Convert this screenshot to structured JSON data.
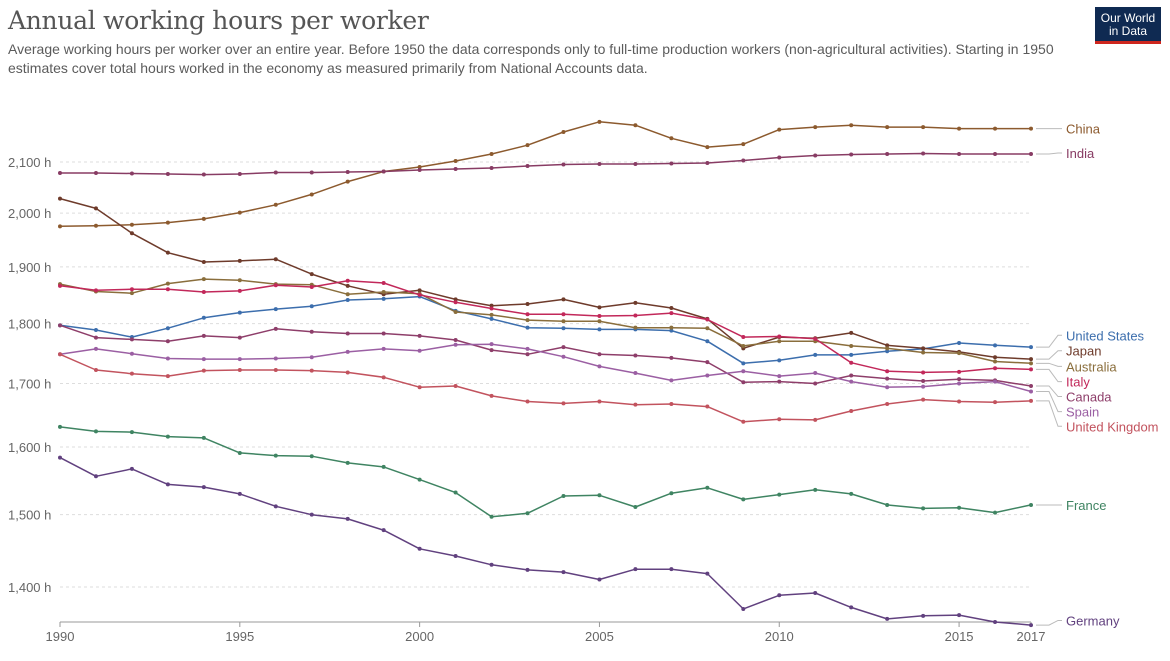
{
  "header": {
    "title": "Annual working hours per worker",
    "subtitle": "Average working hours per worker over an entire year. Before 1950 the data corresponds only to full-time production workers (non-agricultural activities). Starting in 1950 estimates cover total hours worked in the economy as measured primarily from National Accounts data.",
    "logo_line1": "Our World",
    "logo_line2": "in Data"
  },
  "chart_data": {
    "type": "line",
    "title": "Annual working hours per worker",
    "xlabel": "",
    "ylabel": "",
    "xlim": [
      1990,
      2017
    ],
    "ylim": [
      1350,
      2200
    ],
    "x_ticks": [
      1990,
      1995,
      2000,
      2005,
      2010,
      2015,
      2017
    ],
    "y_ticks": [
      {
        "value": 1400,
        "label": "1,400 h"
      },
      {
        "value": 1500,
        "label": "1,500 h"
      },
      {
        "value": 1600,
        "label": "1,600 h"
      },
      {
        "value": 1700,
        "label": "1,700 h"
      },
      {
        "value": 1800,
        "label": "1,800 h"
      },
      {
        "value": 1900,
        "label": "1,900 h"
      },
      {
        "value": 2000,
        "label": "2,000 h"
      },
      {
        "value": 2100,
        "label": "2,100 h"
      }
    ],
    "grid": true,
    "legend": "right-end labels",
    "x": [
      1990,
      1991,
      1992,
      1993,
      1994,
      1995,
      1996,
      1997,
      1998,
      1999,
      2000,
      2001,
      2002,
      2003,
      2004,
      2005,
      2006,
      2007,
      2008,
      2009,
      2010,
      2011,
      2012,
      2013,
      2014,
      2015,
      2016,
      2017
    ],
    "series": [
      {
        "name": "China",
        "color": "#8c5a2e",
        "label_value": 2168,
        "values": [
          1975,
          1976,
          1978,
          1982,
          1989,
          2001,
          2016,
          2036,
          2061,
          2081,
          2090,
          2102,
          2116,
          2134,
          2161,
          2182,
          2175,
          2148,
          2130,
          2136,
          2166,
          2171,
          2175,
          2171,
          2171,
          2168,
          2168,
          2168
        ]
      },
      {
        "name": "India",
        "color": "#883c64",
        "label_value": 2118,
        "values": [
          2078,
          2078,
          2077,
          2076,
          2075,
          2076,
          2079,
          2079,
          2080,
          2081,
          2084,
          2086,
          2088,
          2092,
          2095,
          2096,
          2096,
          2097,
          2098,
          2103,
          2109,
          2113,
          2115,
          2116,
          2117,
          2116,
          2116,
          2116
        ]
      },
      {
        "name": "United States",
        "color": "#3c6ead",
        "label_value": 1780,
        "values": [
          1797,
          1789,
          1777,
          1792,
          1810,
          1819,
          1825,
          1830,
          1841,
          1843,
          1847,
          1822,
          1808,
          1793,
          1792,
          1790,
          1790,
          1788,
          1770,
          1733,
          1738,
          1747,
          1747,
          1753,
          1757,
          1767,
          1763,
          1760
        ]
      },
      {
        "name": "Japan",
        "color": "#6e3b2b",
        "label_value": 1754,
        "values": [
          2028,
          2009,
          1962,
          1926,
          1909,
          1911,
          1914,
          1887,
          1866,
          1851,
          1858,
          1842,
          1831,
          1834,
          1842,
          1828,
          1836,
          1827,
          1808,
          1758,
          1777,
          1775,
          1784,
          1763,
          1758,
          1752,
          1743,
          1740
        ]
      },
      {
        "name": "Australia",
        "color": "#8a6e3c",
        "label_value": 1728,
        "values": [
          1869,
          1856,
          1853,
          1870,
          1878,
          1876,
          1869,
          1868,
          1851,
          1855,
          1852,
          1820,
          1815,
          1806,
          1804,
          1804,
          1793,
          1793,
          1792,
          1762,
          1770,
          1770,
          1762,
          1758,
          1751,
          1750,
          1736,
          1733
        ]
      },
      {
        "name": "Italy",
        "color": "#c2285a",
        "label_value": 1703,
        "values": [
          1866,
          1858,
          1860,
          1860,
          1855,
          1857,
          1867,
          1864,
          1875,
          1871,
          1850,
          1837,
          1826,
          1816,
          1816,
          1813,
          1814,
          1818,
          1807,
          1777,
          1778,
          1774,
          1734,
          1720,
          1718,
          1719,
          1725,
          1723
        ]
      },
      {
        "name": "Canada",
        "color": "#8e3e6a",
        "label_value": 1679,
        "values": [
          1797,
          1776,
          1773,
          1770,
          1779,
          1776,
          1791,
          1786,
          1783,
          1783,
          1779,
          1772,
          1755,
          1748,
          1760,
          1748,
          1746,
          1742,
          1735,
          1702,
          1703,
          1700,
          1713,
          1708,
          1704,
          1707,
          1705,
          1696
        ]
      },
      {
        "name": "Spain",
        "color": "#9b5fa3",
        "label_value": 1655,
        "values": [
          1748,
          1757,
          1749,
          1741,
          1740,
          1740,
          1741,
          1743,
          1752,
          1757,
          1754,
          1764,
          1765,
          1757,
          1744,
          1728,
          1717,
          1705,
          1713,
          1720,
          1712,
          1717,
          1703,
          1694,
          1695,
          1700,
          1703,
          1687
        ]
      },
      {
        "name": "United Kingdom",
        "color": "#c2535e",
        "label_value": 1632,
        "values": [
          1748,
          1722,
          1716,
          1712,
          1721,
          1722,
          1722,
          1721,
          1718,
          1710,
          1694,
          1696,
          1680,
          1671,
          1668,
          1671,
          1666,
          1667,
          1663,
          1639,
          1643,
          1642,
          1656,
          1667,
          1674,
          1671,
          1670,
          1672
        ]
      },
      {
        "name": "France",
        "color": "#3f8462",
        "label_value": 1514,
        "values": [
          1631,
          1624,
          1623,
          1616,
          1614,
          1591,
          1587,
          1586,
          1576,
          1570,
          1551,
          1532,
          1497,
          1502,
          1527,
          1528,
          1511,
          1531,
          1539,
          1522,
          1529,
          1536,
          1530,
          1514,
          1509,
          1510,
          1503,
          1514
        ]
      },
      {
        "name": "Germany",
        "color": "#61417f",
        "label_value": 1356,
        "values": [
          1584,
          1556,
          1567,
          1544,
          1540,
          1530,
          1512,
          1500,
          1494,
          1478,
          1452,
          1442,
          1430,
          1423,
          1420,
          1410,
          1424,
          1424,
          1418,
          1371,
          1389,
          1392,
          1373,
          1358,
          1362,
          1363,
          1354,
          1350
        ]
      }
    ]
  }
}
